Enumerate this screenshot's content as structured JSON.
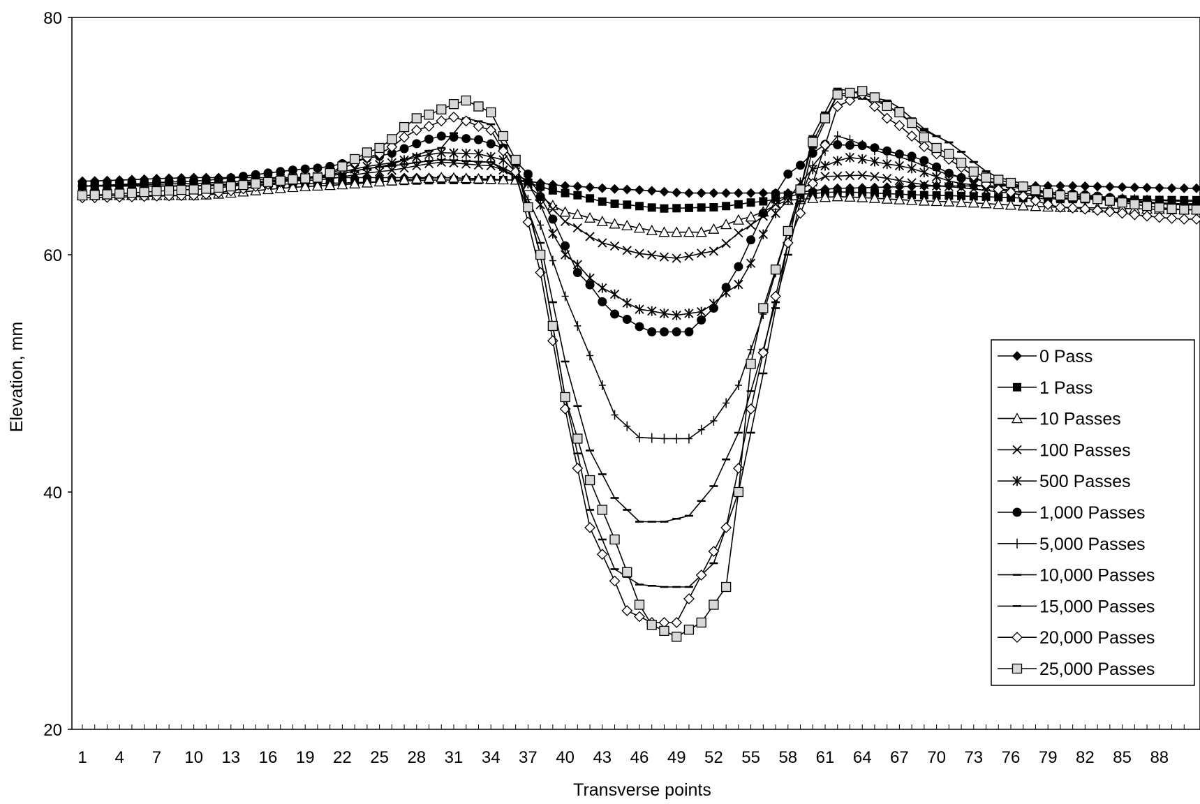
{
  "chart_data": {
    "type": "line",
    "xlabel": "Transverse points",
    "ylabel": "Elevation, mm",
    "xlim": [
      1,
      90
    ],
    "ylim": [
      20,
      80
    ],
    "y_ticks": [
      20,
      40,
      60,
      80
    ],
    "x_tick_labels": [
      "1",
      "4",
      "7",
      "10",
      "13",
      "16",
      "19",
      "22",
      "25",
      "28",
      "31",
      "34",
      "37",
      "40",
      "43",
      "46",
      "49",
      "52",
      "55",
      "58",
      "61",
      "64",
      "67",
      "70",
      "73",
      "76",
      "79",
      "82",
      "85",
      "88"
    ],
    "grid": false,
    "legend_position": "right",
    "series": [
      {
        "name": "0 Pass",
        "marker": "diamond-filled",
        "keys": [
          [
            1,
            66.2
          ],
          [
            10,
            66.5
          ],
          [
            20,
            66.5
          ],
          [
            30,
            66.5
          ],
          [
            36,
            66.3
          ],
          [
            40,
            65.8
          ],
          [
            45,
            65.5
          ],
          [
            50,
            65.2
          ],
          [
            55,
            65.2
          ],
          [
            58,
            65.2
          ],
          [
            62,
            65.6
          ],
          [
            70,
            65.8
          ],
          [
            80,
            65.8
          ],
          [
            90,
            65.6
          ]
        ]
      },
      {
        "name": "1 Pass",
        "marker": "square-filled",
        "keys": [
          [
            1,
            65.8
          ],
          [
            10,
            65.8
          ],
          [
            20,
            66.0
          ],
          [
            30,
            66.3
          ],
          [
            36,
            66.3
          ],
          [
            40,
            65.2
          ],
          [
            44,
            64.3
          ],
          [
            48,
            63.9
          ],
          [
            52,
            64.0
          ],
          [
            56,
            64.5
          ],
          [
            59,
            65.1
          ],
          [
            62,
            65.3
          ],
          [
            70,
            65.0
          ],
          [
            80,
            64.7
          ],
          [
            90,
            64.6
          ]
        ]
      },
      {
        "name": "10 Passes",
        "marker": "triangle-open",
        "keys": [
          [
            1,
            65.0
          ],
          [
            10,
            65.0
          ],
          [
            20,
            65.8
          ],
          [
            30,
            66.5
          ],
          [
            36,
            66.3
          ],
          [
            40,
            63.6
          ],
          [
            44,
            62.6
          ],
          [
            48,
            61.9
          ],
          [
            51,
            61.9
          ],
          [
            55,
            63.2
          ],
          [
            58,
            64.6
          ],
          [
            62,
            64.9
          ],
          [
            70,
            64.5
          ],
          [
            80,
            64.0
          ],
          [
            90,
            63.8
          ]
        ]
      },
      {
        "name": "100 Passes",
        "marker": "x",
        "keys": [
          [
            1,
            65.8
          ],
          [
            10,
            65.8
          ],
          [
            20,
            66.3
          ],
          [
            25,
            67.0
          ],
          [
            30,
            67.8
          ],
          [
            34,
            67.5
          ],
          [
            37,
            66.3
          ],
          [
            40,
            62.8
          ],
          [
            43,
            61.0
          ],
          [
            46,
            60.1
          ],
          [
            49,
            59.7
          ],
          [
            52,
            60.3
          ],
          [
            55,
            62.5
          ],
          [
            58,
            65.0
          ],
          [
            61,
            66.6
          ],
          [
            64,
            66.7
          ],
          [
            70,
            65.8
          ],
          [
            80,
            64.8
          ],
          [
            90,
            64.3
          ]
        ]
      },
      {
        "name": "500 Passes",
        "marker": "star",
        "keys": [
          [
            1,
            65.8
          ],
          [
            10,
            66.0
          ],
          [
            20,
            66.6
          ],
          [
            25,
            67.6
          ],
          [
            30,
            68.6
          ],
          [
            33,
            68.5
          ],
          [
            35,
            68.0
          ],
          [
            37,
            66.0
          ],
          [
            40,
            60.0
          ],
          [
            43,
            57.2
          ],
          [
            46,
            55.4
          ],
          [
            49,
            54.9
          ],
          [
            51,
            55.2
          ],
          [
            54,
            57.5
          ],
          [
            57,
            63.5
          ],
          [
            60,
            67.2
          ],
          [
            63,
            68.2
          ],
          [
            67,
            67.5
          ],
          [
            72,
            66.0
          ],
          [
            80,
            64.8
          ],
          [
            90,
            64.2
          ]
        ]
      },
      {
        "name": "1,000 Passes",
        "marker": "circle-filled",
        "keys": [
          [
            1,
            65.8
          ],
          [
            10,
            66.2
          ],
          [
            20,
            67.3
          ],
          [
            25,
            68.3
          ],
          [
            30,
            70.0
          ],
          [
            33,
            69.7
          ],
          [
            35,
            69.0
          ],
          [
            37,
            66.8
          ],
          [
            39,
            63.0
          ],
          [
            41,
            58.5
          ],
          [
            44,
            55.0
          ],
          [
            47,
            53.5
          ],
          [
            50,
            53.5
          ],
          [
            52,
            55.5
          ],
          [
            54,
            59.0
          ],
          [
            56,
            63.5
          ],
          [
            58,
            66.8
          ],
          [
            61,
            69.3
          ],
          [
            64,
            69.2
          ],
          [
            68,
            68.3
          ],
          [
            72,
            66.5
          ],
          [
            80,
            65.2
          ],
          [
            90,
            64.2
          ]
        ]
      },
      {
        "name": "5,000 Passes",
        "marker": "plus",
        "keys": [
          [
            1,
            65.8
          ],
          [
            10,
            65.8
          ],
          [
            20,
            66.5
          ],
          [
            25,
            67.4
          ],
          [
            30,
            68.0
          ],
          [
            34,
            67.8
          ],
          [
            36,
            66.8
          ],
          [
            38,
            62.5
          ],
          [
            40,
            56.5
          ],
          [
            42,
            51.5
          ],
          [
            44,
            46.5
          ],
          [
            46,
            44.6
          ],
          [
            48,
            44.5
          ],
          [
            50,
            44.5
          ],
          [
            52,
            46.0
          ],
          [
            54,
            49.0
          ],
          [
            56,
            55.0
          ],
          [
            58,
            62.0
          ],
          [
            60,
            67.5
          ],
          [
            62,
            70.0
          ],
          [
            66,
            68.5
          ],
          [
            72,
            66.5
          ],
          [
            80,
            65.0
          ],
          [
            90,
            64.5
          ]
        ]
      },
      {
        "name": "10,000 Passes",
        "marker": "dash",
        "keys": [
          [
            1,
            65.8
          ],
          [
            10,
            65.8
          ],
          [
            20,
            66.5
          ],
          [
            25,
            67.4
          ],
          [
            30,
            68.0
          ],
          [
            34,
            67.8
          ],
          [
            36,
            66.5
          ],
          [
            38,
            61.0
          ],
          [
            40,
            51.0
          ],
          [
            42,
            43.5
          ],
          [
            44,
            39.5
          ],
          [
            46,
            37.5
          ],
          [
            48,
            37.5
          ],
          [
            50,
            38.0
          ],
          [
            52,
            40.5
          ],
          [
            54,
            45.0
          ],
          [
            56,
            52.0
          ],
          [
            58,
            60.0
          ],
          [
            60,
            69.0
          ],
          [
            62,
            73.5
          ],
          [
            65,
            73.0
          ],
          [
            70,
            70.0
          ],
          [
            75,
            66.5
          ],
          [
            80,
            65.0
          ],
          [
            90,
            64.2
          ]
        ]
      },
      {
        "name": "15,000 Passes",
        "marker": "dash",
        "keys": [
          [
            1,
            65.8
          ],
          [
            10,
            65.8
          ],
          [
            20,
            66.5
          ],
          [
            25,
            67.4
          ],
          [
            30,
            69.0
          ],
          [
            32,
            71.5
          ],
          [
            34,
            71.0
          ],
          [
            36,
            67.5
          ],
          [
            38,
            60.0
          ],
          [
            40,
            48.0
          ],
          [
            42,
            38.5
          ],
          [
            44,
            33.5
          ],
          [
            46,
            32.2
          ],
          [
            48,
            32.0
          ],
          [
            50,
            32.0
          ],
          [
            52,
            34.0
          ],
          [
            54,
            40.0
          ],
          [
            56,
            50.0
          ],
          [
            58,
            61.0
          ],
          [
            60,
            70.0
          ],
          [
            62,
            74.0
          ],
          [
            66,
            73.0
          ],
          [
            70,
            70.0
          ],
          [
            75,
            66.5
          ],
          [
            80,
            65.0
          ],
          [
            90,
            64.2
          ]
        ]
      },
      {
        "name": "20,000 Passes",
        "marker": "diamond-open",
        "keys": [
          [
            1,
            64.8
          ],
          [
            10,
            65.0
          ],
          [
            20,
            66.5
          ],
          [
            25,
            68.5
          ],
          [
            28,
            70.5
          ],
          [
            31,
            71.6
          ],
          [
            34,
            70.5
          ],
          [
            36,
            67.0
          ],
          [
            38,
            58.5
          ],
          [
            40,
            47.0
          ],
          [
            42,
            37.0
          ],
          [
            44,
            32.5
          ],
          [
            45,
            30.0
          ],
          [
            47,
            29.0
          ],
          [
            49,
            29.0
          ],
          [
            51,
            33.0
          ],
          [
            53,
            37.0
          ],
          [
            55,
            47.0
          ],
          [
            57,
            56.5
          ],
          [
            58,
            61.0
          ],
          [
            60,
            66.0
          ],
          [
            62,
            72.5
          ],
          [
            64,
            73.5
          ],
          [
            66,
            71.5
          ],
          [
            70,
            68.5
          ],
          [
            75,
            65.5
          ],
          [
            80,
            64.0
          ],
          [
            90,
            63.0
          ]
        ]
      },
      {
        "name": "25,000 Passes",
        "marker": "square-open",
        "keys": [
          [
            1,
            65.0
          ],
          [
            10,
            65.5
          ],
          [
            20,
            66.5
          ],
          [
            25,
            69.0
          ],
          [
            28,
            71.5
          ],
          [
            32,
            73.0
          ],
          [
            34,
            72.0
          ],
          [
            36,
            68.0
          ],
          [
            38,
            60.0
          ],
          [
            40,
            48.0
          ],
          [
            42,
            41.0
          ],
          [
            44,
            36.0
          ],
          [
            46,
            30.5
          ],
          [
            47,
            28.8
          ],
          [
            49,
            27.8
          ],
          [
            51,
            29.0
          ],
          [
            53,
            32.0
          ],
          [
            54,
            40.0
          ],
          [
            55,
            50.8
          ],
          [
            56,
            55.5
          ],
          [
            58,
            62.0
          ],
          [
            59,
            65.5
          ],
          [
            60,
            69.5
          ],
          [
            62,
            73.5
          ],
          [
            64,
            73.8
          ],
          [
            67,
            72.0
          ],
          [
            70,
            69.0
          ],
          [
            74,
            66.5
          ],
          [
            80,
            65.0
          ],
          [
            90,
            63.8
          ]
        ]
      }
    ]
  }
}
